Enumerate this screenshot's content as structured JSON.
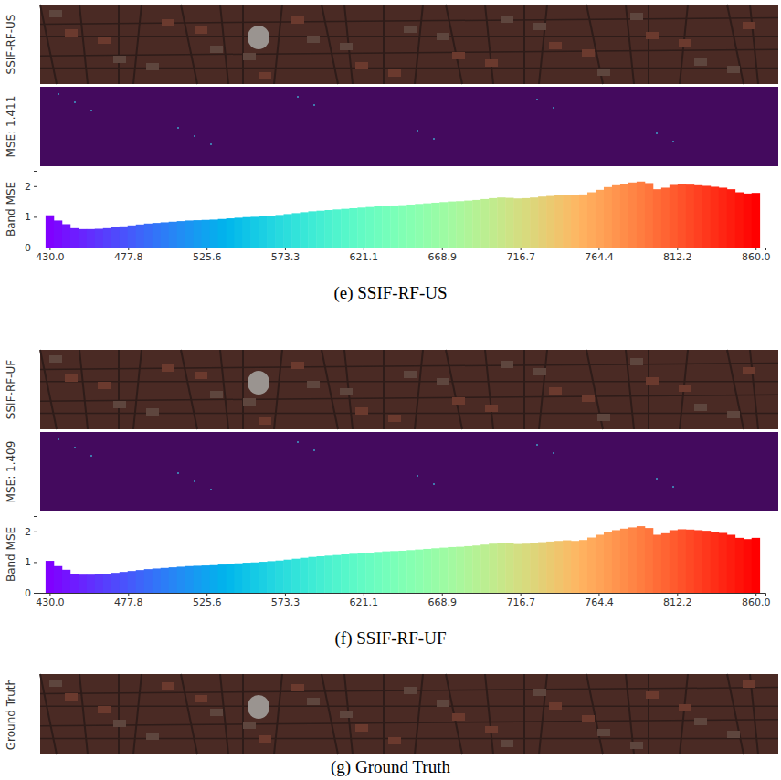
{
  "chart_data": [
    {
      "type": "bar",
      "ylabel": "Band MSE",
      "x": [
        430,
        435,
        440,
        445,
        450,
        455,
        460,
        465,
        470,
        475,
        480,
        485,
        490,
        495,
        500,
        505,
        510,
        515,
        520,
        525,
        530,
        535,
        540,
        545,
        550,
        555,
        560,
        565,
        570,
        575,
        580,
        585,
        590,
        595,
        600,
        605,
        610,
        615,
        620,
        625,
        630,
        635,
        640,
        645,
        650,
        655,
        660,
        665,
        670,
        675,
        680,
        685,
        690,
        695,
        700,
        705,
        710,
        715,
        720,
        725,
        730,
        735,
        740,
        745,
        750,
        755,
        760,
        765,
        770,
        775,
        780,
        785,
        790,
        795,
        800,
        805,
        810,
        815,
        820,
        825,
        830,
        835,
        840,
        845,
        850,
        855,
        860
      ],
      "values": [
        1.05,
        0.88,
        0.76,
        0.63,
        0.6,
        0.6,
        0.61,
        0.63,
        0.66,
        0.69,
        0.72,
        0.75,
        0.78,
        0.8,
        0.82,
        0.84,
        0.86,
        0.88,
        0.89,
        0.9,
        0.91,
        0.93,
        0.95,
        0.97,
        0.99,
        1.0,
        1.02,
        1.04,
        1.06,
        1.09,
        1.12,
        1.15,
        1.18,
        1.2,
        1.22,
        1.24,
        1.26,
        1.28,
        1.3,
        1.32,
        1.34,
        1.36,
        1.37,
        1.38,
        1.4,
        1.42,
        1.44,
        1.46,
        1.48,
        1.5,
        1.51,
        1.53,
        1.55,
        1.58,
        1.61,
        1.63,
        1.62,
        1.6,
        1.61,
        1.63,
        1.66,
        1.68,
        1.7,
        1.72,
        1.7,
        1.73,
        1.8,
        1.88,
        1.97,
        2.03,
        2.08,
        2.12,
        2.15,
        2.1,
        1.9,
        1.95,
        2.04,
        2.06,
        2.05,
        2.03,
        2.01,
        1.98,
        1.95,
        1.9,
        1.8,
        1.76,
        1.78
      ],
      "xlim": [
        422,
        866
      ],
      "xticks": [
        {
          "value": 430,
          "label": "430.0"
        },
        {
          "value": 477.8,
          "label": "477.8"
        },
        {
          "value": 525.6,
          "label": "525.6"
        },
        {
          "value": 573.3,
          "label": "573.3"
        },
        {
          "value": 621.1,
          "label": "621.1"
        },
        {
          "value": 668.9,
          "label": "668.9"
        },
        {
          "value": 716.7,
          "label": "716.7"
        },
        {
          "value": 764.4,
          "label": "764.4"
        },
        {
          "value": 812.2,
          "label": "812.2"
        },
        {
          "value": 860,
          "label": "860.0"
        }
      ],
      "ylim": [
        0,
        2.5
      ],
      "yticks": [
        0,
        1,
        2
      ],
      "grid": false
    },
    {
      "type": "bar",
      "ylabel": "Band MSE",
      "x": [
        430,
        435,
        440,
        445,
        450,
        455,
        460,
        465,
        470,
        475,
        480,
        485,
        490,
        495,
        500,
        505,
        510,
        515,
        520,
        525,
        530,
        535,
        540,
        545,
        550,
        555,
        560,
        565,
        570,
        575,
        580,
        585,
        590,
        595,
        600,
        605,
        610,
        615,
        620,
        625,
        630,
        635,
        640,
        645,
        650,
        655,
        660,
        665,
        670,
        675,
        680,
        685,
        690,
        695,
        700,
        705,
        710,
        715,
        720,
        725,
        730,
        735,
        740,
        745,
        750,
        755,
        760,
        765,
        770,
        775,
        780,
        785,
        790,
        795,
        800,
        805,
        810,
        815,
        820,
        825,
        830,
        835,
        840,
        845,
        850,
        855,
        860
      ],
      "values": [
        1.04,
        0.87,
        0.75,
        0.62,
        0.59,
        0.59,
        0.6,
        0.62,
        0.65,
        0.68,
        0.71,
        0.74,
        0.77,
        0.79,
        0.81,
        0.83,
        0.85,
        0.87,
        0.88,
        0.89,
        0.9,
        0.92,
        0.94,
        0.96,
        0.98,
        0.99,
        1.01,
        1.03,
        1.05,
        1.08,
        1.11,
        1.14,
        1.17,
        1.19,
        1.21,
        1.23,
        1.25,
        1.27,
        1.29,
        1.31,
        1.33,
        1.35,
        1.36,
        1.37,
        1.39,
        1.41,
        1.43,
        1.45,
        1.47,
        1.49,
        1.5,
        1.52,
        1.54,
        1.57,
        1.6,
        1.62,
        1.61,
        1.59,
        1.6,
        1.62,
        1.65,
        1.67,
        1.69,
        1.71,
        1.69,
        1.72,
        1.8,
        1.89,
        1.98,
        2.04,
        2.09,
        2.13,
        2.17,
        2.11,
        1.89,
        1.94,
        2.04,
        2.07,
        2.06,
        2.04,
        2.02,
        1.99,
        1.95,
        1.89,
        1.79,
        1.75,
        1.79
      ],
      "xlim": [
        422,
        866
      ],
      "xticks": [
        {
          "value": 430,
          "label": "430.0"
        },
        {
          "value": 477.8,
          "label": "477.8"
        },
        {
          "value": 525.6,
          "label": "525.6"
        },
        {
          "value": 573.3,
          "label": "573.3"
        },
        {
          "value": 621.1,
          "label": "621.1"
        },
        {
          "value": 668.9,
          "label": "668.9"
        },
        {
          "value": 716.7,
          "label": "716.7"
        },
        {
          "value": 764.4,
          "label": "764.4"
        },
        {
          "value": 812.2,
          "label": "812.2"
        },
        {
          "value": 860,
          "label": "860.0"
        }
      ],
      "ylim": [
        0,
        2.5
      ],
      "yticks": [
        0,
        1,
        2
      ],
      "grid": false
    }
  ],
  "panels": [
    {
      "image_label": "SSIF-RF-US",
      "mse_label": "MSE: 1.411",
      "caption": "(e) SSIF-RF-US"
    },
    {
      "image_label": "SSIF-RF-UF",
      "mse_label": "MSE: 1.409",
      "caption": "(f) SSIF-RF-UF"
    },
    {
      "image_label": "Ground Truth",
      "caption": "(g) Ground Truth"
    }
  ]
}
